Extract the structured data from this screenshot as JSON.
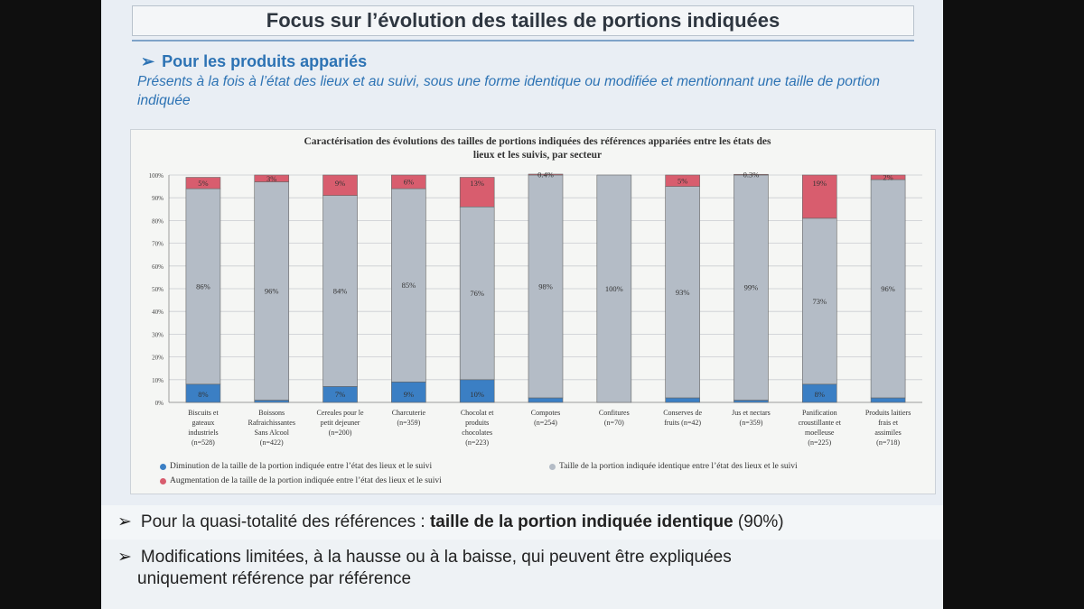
{
  "slide": {
    "title": "Focus sur l’évolution des tailles de portions indiquées",
    "subtitle": "Pour les produits appariés",
    "subtitle_marker": "➢",
    "description": "Présents à la fois à l’état des lieux et au suivi, sous une forme identique ou modifiée et mentionnant une taille de portion indiquée"
  },
  "bullets": {
    "marker": "➢",
    "b1_text": "Pour la quasi-totalité des références : ",
    "b1_bold": "taille de la portion indiquée identique",
    "b1_tail": " (90%)",
    "b2_line1": "Modifications limitées, à la hausse ou à la baisse, qui peuvent être expliquées",
    "b2_line2": "uniquement référence par référence"
  },
  "chart_data": {
    "type": "bar",
    "stacked": true,
    "title_line1": "Caractérisation des évolutions  des tailles de portions indiquées  des références appariées entre les états des",
    "title_line2": "lieux et les suivis, par secteur",
    "yticks": [
      "0%",
      "10%",
      "20%",
      "30%",
      "40%",
      "50%",
      "60%",
      "70%",
      "80%",
      "90%",
      "100%"
    ],
    "ylim": [
      0,
      100
    ],
    "grid": true,
    "categories": [
      [
        "Biscuits et",
        "gateaux",
        "industriels",
        "(n=528)"
      ],
      [
        "Boissons",
        "Rafraichissantes",
        "Sans Alcool",
        "(n=422)"
      ],
      [
        "Cereales pour le",
        "petit dejeuner",
        "(n=200)"
      ],
      [
        "Charcuterie",
        "(n=359)"
      ],
      [
        "Chocolat et",
        "produits",
        "chocolates",
        "(n=223)"
      ],
      [
        "Compotes",
        "(n=254)"
      ],
      [
        "Confitures",
        "(n=70)"
      ],
      [
        "Conserves de",
        "fruits (n=42)"
      ],
      [
        "Jus et nectars",
        "(n=359)"
      ],
      [
        "Panification",
        "croustillante et",
        "moelleuse",
        "(n=225)"
      ],
      [
        "Produits laitiers",
        "frais et",
        "assimiles",
        "(n=718)"
      ]
    ],
    "series": [
      {
        "name": "Diminution de la taille de la portion indiquée entre l’état des lieux et le suivi",
        "color": "#3b7fc4",
        "values": [
          8,
          1,
          7,
          9,
          10,
          2,
          0,
          2,
          1,
          8,
          2
        ],
        "labels": [
          "8%",
          "1%",
          "7%",
          "9%",
          "10%",
          "2%",
          "",
          "2%",
          "1%",
          "8%",
          "2%"
        ]
      },
      {
        "name": "Taille de la portion indiquée  identique entre l’état des lieux et le suivi",
        "color": "#b4bcc6",
        "values": [
          86,
          96,
          84,
          85,
          76,
          98,
          100,
          93,
          99,
          73,
          96
        ],
        "labels": [
          "86%",
          "96%",
          "84%",
          "85%",
          "76%",
          "98%",
          "100%",
          "93%",
          "99%",
          "73%",
          "96%"
        ]
      },
      {
        "name": "Augmentation de la taille de la portion indiquée entre l’état des lieux et le suivi",
        "color": "#d85d6e",
        "values": [
          5,
          3,
          9,
          6,
          13,
          0.4,
          0,
          5,
          0.3,
          19,
          2
        ],
        "labels": [
          "5%",
          "3%",
          "9%",
          "6%",
          "13%",
          "0.4%",
          "",
          "5%",
          "0.3%",
          "19%",
          "2%"
        ]
      }
    ]
  }
}
